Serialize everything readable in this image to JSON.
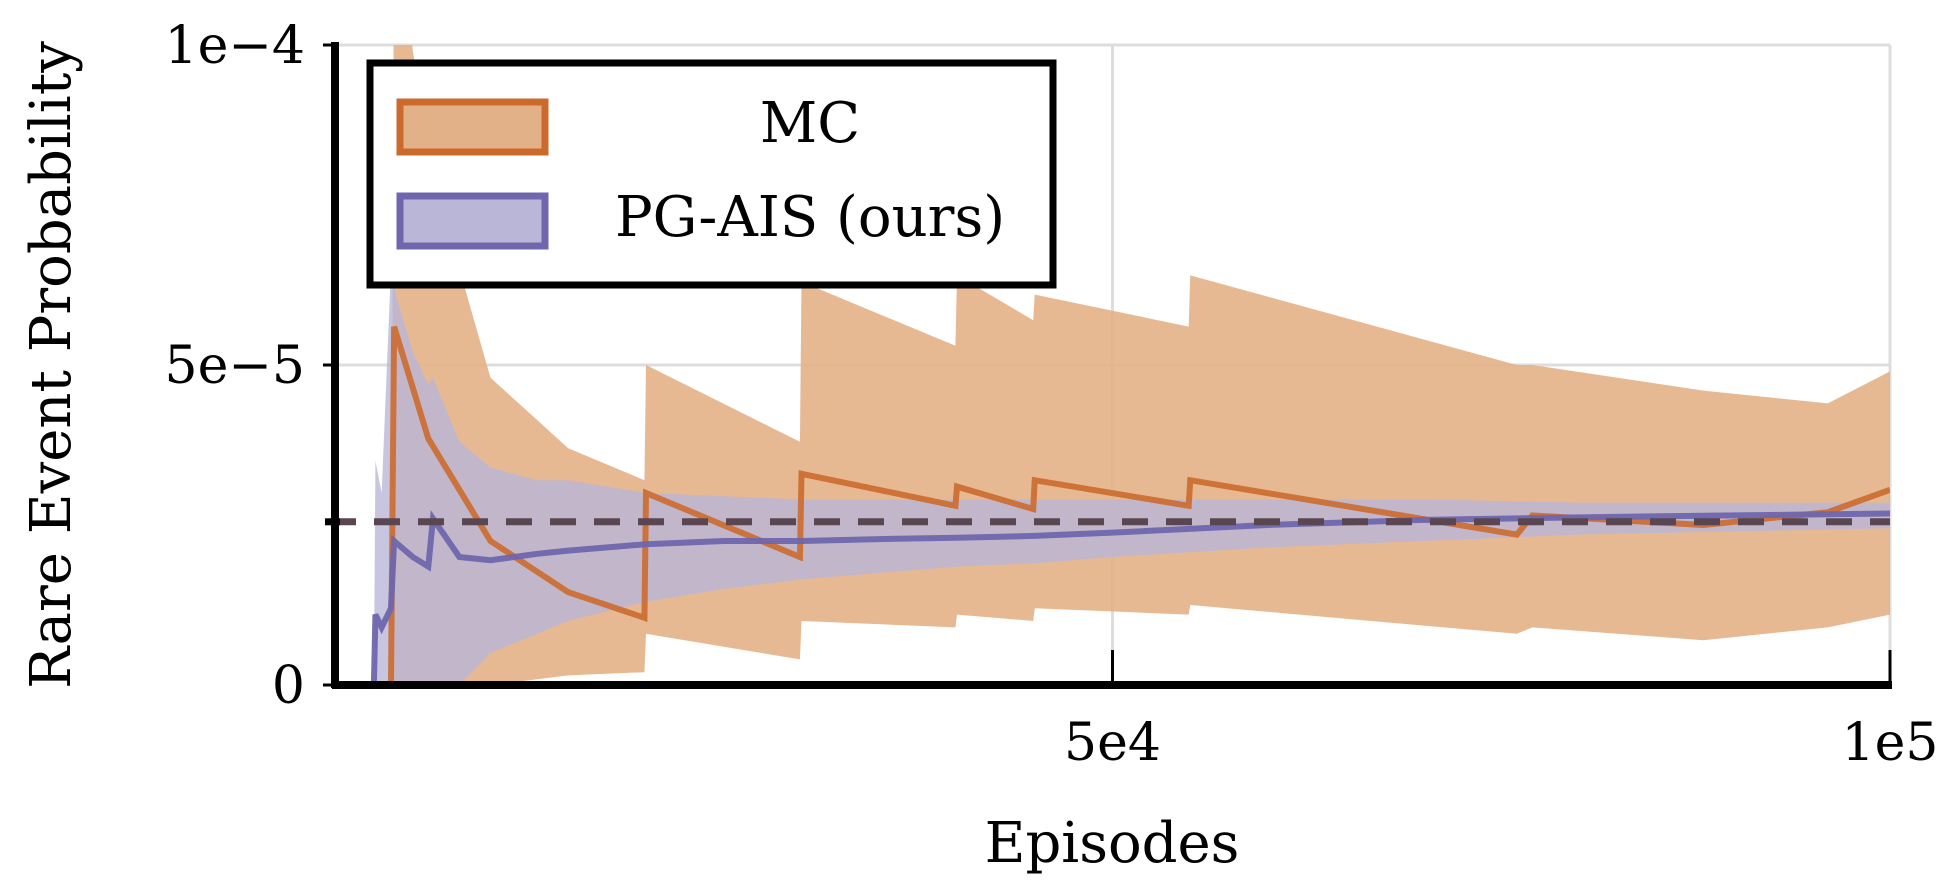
{
  "chart_data": {
    "type": "line",
    "xlabel": "Episodes",
    "ylabel": "Rare Event Probability",
    "xlim": [
      0,
      100000
    ],
    "ylim": [
      0,
      0.0001
    ],
    "x_ticks": [
      {
        "value": 50000,
        "label": "5e4"
      },
      {
        "value": 100000,
        "label": "1e5"
      }
    ],
    "y_ticks": [
      {
        "value": 0,
        "label": "0"
      },
      {
        "value": 5e-05,
        "label": "5e−5"
      },
      {
        "value": 0.0001,
        "label": "1e−4"
      }
    ],
    "grid": true,
    "legend_position": "top-left",
    "reference_line": {
      "y": 2.55e-05,
      "style": "dashed",
      "color": "#5a4650"
    },
    "series": [
      {
        "name": "MC",
        "color": "#cc6a2e",
        "band_color": "#e3b187",
        "x": [
          0,
          3600,
          3800,
          6000,
          10000,
          15000,
          19900,
          20000,
          29900,
          30000,
          39900,
          40000,
          44900,
          45000,
          54900,
          55000,
          76000,
          77000,
          88000,
          96000,
          100000
        ],
        "y": [
          0,
          0,
          5.6e-05,
          3.85e-05,
          2.25e-05,
          1.45e-05,
          1.05e-05,
          3e-05,
          2e-05,
          3.3e-05,
          2.8e-05,
          3.1e-05,
          2.75e-05,
          3.2e-05,
          2.8e-05,
          3.2e-05,
          2.35e-05,
          2.65e-05,
          2.5e-05,
          2.7e-05,
          3.05e-05
        ],
        "upper": [
          0,
          0,
          0.00012,
          8.2e-05,
          4.8e-05,
          3.7e-05,
          3.2e-05,
          5e-05,
          3.8e-05,
          6.3e-05,
          5.3e-05,
          6.4e-05,
          5.7e-05,
          6.1e-05,
          5.6e-05,
          6.4e-05,
          5e-05,
          5e-05,
          4.6e-05,
          4.4e-05,
          4.9e-05
        ],
        "lower": [
          0,
          0,
          0,
          0,
          0,
          1.5e-06,
          2e-06,
          8e-06,
          4e-06,
          1e-05,
          9e-06,
          1.1e-05,
          1e-05,
          1.2e-05,
          1.1e-05,
          1.25e-05,
          8e-06,
          9e-06,
          7e-06,
          9e-06,
          1.1e-05
        ]
      },
      {
        "name": "PG-AIS (ours)",
        "color": "#6f66ad",
        "band_color": "#b9b6d8",
        "x": [
          0,
          2500,
          2600,
          3000,
          3600,
          3800,
          5000,
          6000,
          6300,
          8000,
          10000,
          13000,
          15000,
          20000,
          25000,
          30000,
          35000,
          40000,
          45000,
          50000,
          60000,
          70000,
          80000,
          90000,
          100000
        ],
        "y": [
          0,
          0,
          1.1e-05,
          9e-06,
          1.2e-05,
          2.25e-05,
          2e-05,
          1.85e-05,
          2.6e-05,
          2e-05,
          1.95e-05,
          2.05e-05,
          2.1e-05,
          2.2e-05,
          2.25e-05,
          2.25e-05,
          2.28e-05,
          2.3e-05,
          2.33e-05,
          2.38e-05,
          2.5e-05,
          2.58e-05,
          2.62e-05,
          2.65e-05,
          2.68e-05
        ],
        "upper": [
          0,
          0,
          3.5e-05,
          3e-05,
          6.5e-05,
          6.2e-05,
          5.2e-05,
          4.7e-05,
          4.8e-05,
          3.8e-05,
          3.4e-05,
          3.2e-05,
          3.2e-05,
          3e-05,
          2.95e-05,
          2.9e-05,
          2.9e-05,
          2.9e-05,
          2.9e-05,
          2.9e-05,
          2.9e-05,
          2.9e-05,
          2.85e-05,
          2.85e-05,
          2.85e-05
        ],
        "lower": [
          0,
          0,
          0,
          0,
          0,
          0,
          0,
          0,
          0,
          0.0,
          5e-06,
          8e-06,
          1e-05,
          1.3e-05,
          1.5e-05,
          1.65e-05,
          1.75e-05,
          1.85e-05,
          1.9e-05,
          2e-05,
          2.15e-05,
          2.25e-05,
          2.35e-05,
          2.4e-05,
          2.45e-05
        ]
      }
    ]
  }
}
